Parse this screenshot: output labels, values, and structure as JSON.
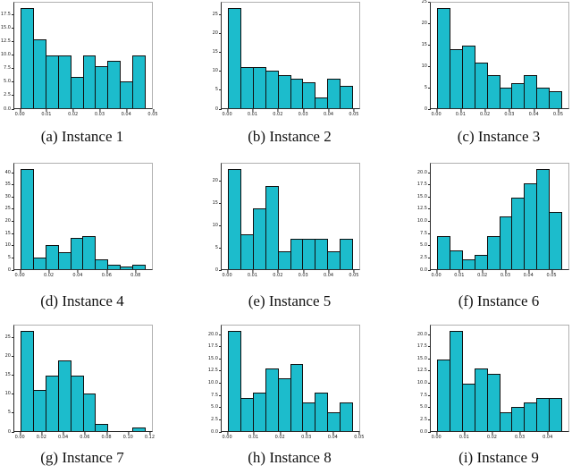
{
  "figure": {
    "background": "#ffffff",
    "bar_fill": "#1cbccc",
    "bar_edge": "#101010",
    "spine_color": "#2b2b2b",
    "grid": "off",
    "legend": "none",
    "layout": "3x3-histogram-grid"
  },
  "chart_data": [
    {
      "type": "bar",
      "subtype": "histogram",
      "caption": "(a) Instance 1",
      "values": [
        19,
        13,
        10,
        10,
        6,
        10,
        8,
        9,
        5,
        10
      ],
      "x_range": [
        0,
        0.0476
      ],
      "xlim": [
        -0.0024,
        0.05
      ],
      "ylim": [
        0,
        19.95
      ],
      "yticks": [
        "0.0",
        "2.5",
        "5.0",
        "7.5",
        "10.0",
        "12.5",
        "15.0",
        "17.5"
      ],
      "xticks": [
        "0.00",
        "0.01",
        "0.02",
        "0.03",
        "0.04",
        "0.05"
      ]
    },
    {
      "type": "bar",
      "subtype": "histogram",
      "caption": "(b) Instance 2",
      "values": [
        27,
        11,
        11,
        10,
        9,
        8,
        7,
        3,
        8,
        6
      ],
      "x_range": [
        0,
        0.05
      ],
      "xlim": [
        -0.0025,
        0.0525
      ],
      "ylim": [
        0,
        28.35
      ],
      "yticks": [
        "0",
        "5",
        "10",
        "15",
        "20",
        "25"
      ],
      "xticks": [
        "0.00",
        "0.01",
        "0.02",
        "0.03",
        "0.04",
        "0.05"
      ]
    },
    {
      "type": "bar",
      "subtype": "histogram",
      "caption": "(c) Instance 3",
      "values": [
        24,
        14,
        15,
        11,
        8,
        5,
        6,
        8,
        5,
        4
      ],
      "x_range": [
        0,
        0.052
      ],
      "xlim": [
        -0.0026,
        0.0546
      ],
      "ylim": [
        0,
        25.2
      ],
      "yticks": [
        "0",
        "5",
        "10",
        "15",
        "20",
        "25"
      ],
      "xticks": [
        "0.00",
        "0.01",
        "0.02",
        "0.03",
        "0.04",
        "0.05"
      ]
    },
    {
      "type": "bar",
      "subtype": "histogram",
      "caption": "(d) Instance 4",
      "values": [
        42,
        5,
        10,
        7,
        13,
        14,
        4,
        2,
        1,
        2
      ],
      "x_range": [
        0,
        0.0875
      ],
      "xlim": [
        -0.0044,
        0.0919
      ],
      "ylim": [
        0,
        44.1
      ],
      "yticks": [
        "0",
        "5",
        "10",
        "15",
        "20",
        "25",
        "30",
        "35",
        "40"
      ],
      "xticks": [
        "0.00",
        "0.02",
        "0.04",
        "0.06",
        "0.08"
      ]
    },
    {
      "type": "bar",
      "subtype": "histogram",
      "caption": "(e) Instance 5",
      "values": [
        23,
        8,
        14,
        19,
        4,
        7,
        7,
        7,
        4,
        7
      ],
      "x_range": [
        0,
        0.05
      ],
      "xlim": [
        -0.0025,
        0.0525
      ],
      "ylim": [
        0,
        24.15
      ],
      "yticks": [
        "0",
        "5",
        "10",
        "15",
        "20"
      ],
      "xticks": [
        "0.00",
        "0.01",
        "0.02",
        "0.03",
        "0.04",
        "0.05"
      ]
    },
    {
      "type": "bar",
      "subtype": "histogram",
      "caption": "(f) Instance 6",
      "values": [
        7,
        4,
        2,
        3,
        7,
        11,
        15,
        18,
        21,
        12
      ],
      "x_range": [
        0,
        0.055
      ],
      "xlim": [
        -0.00275,
        0.05775
      ],
      "ylim": [
        0,
        22.05
      ],
      "yticks": [
        "0.0",
        "2.5",
        "5.0",
        "7.5",
        "10.0",
        "12.5",
        "15.0",
        "17.5",
        "20.0"
      ],
      "xticks": [
        "0.00",
        "0.01",
        "0.02",
        "0.03",
        "0.04",
        "0.05"
      ]
    },
    {
      "type": "bar",
      "subtype": "histogram",
      "caption": "(g) Instance 7",
      "values": [
        27,
        11,
        15,
        19,
        15,
        10,
        2,
        0,
        0,
        1
      ],
      "x_range": [
        0,
        0.117
      ],
      "xlim": [
        -0.0059,
        0.1229
      ],
      "ylim": [
        0,
        28.35
      ],
      "yticks": [
        "0",
        "5",
        "10",
        "15",
        "20",
        "25"
      ],
      "xticks": [
        "0.00",
        "0.02",
        "0.04",
        "0.06",
        "0.08",
        "0.10",
        "0.12"
      ]
    },
    {
      "type": "bar",
      "subtype": "histogram",
      "caption": "(h) Instance 8",
      "values": [
        21,
        7,
        8,
        13,
        11,
        14,
        6,
        8,
        4,
        6
      ],
      "x_range": [
        0,
        0.048
      ],
      "xlim": [
        -0.0024,
        0.0504
      ],
      "ylim": [
        0,
        22.05
      ],
      "yticks": [
        "0.0",
        "2.5",
        "5.0",
        "7.5",
        "10.0",
        "12.5",
        "15.0",
        "17.5",
        "20.0"
      ],
      "xticks": [
        "0.00",
        "0.01",
        "0.02",
        "0.03",
        "0.04",
        "0.05"
      ]
    },
    {
      "type": "bar",
      "subtype": "histogram",
      "caption": "(i) Instance 9",
      "values": [
        15,
        21,
        10,
        13,
        12,
        4,
        5,
        6,
        7,
        7
      ],
      "x_range": [
        0,
        0.0455
      ],
      "xlim": [
        -0.0023,
        0.0478
      ],
      "ylim": [
        0,
        22.05
      ],
      "yticks": [
        "0.0",
        "2.5",
        "5.0",
        "7.5",
        "10.0",
        "12.5",
        "15.0",
        "17.5",
        "20.0"
      ],
      "xticks": [
        "0.00",
        "0.01",
        "0.02",
        "0.03",
        "0.04"
      ]
    }
  ]
}
